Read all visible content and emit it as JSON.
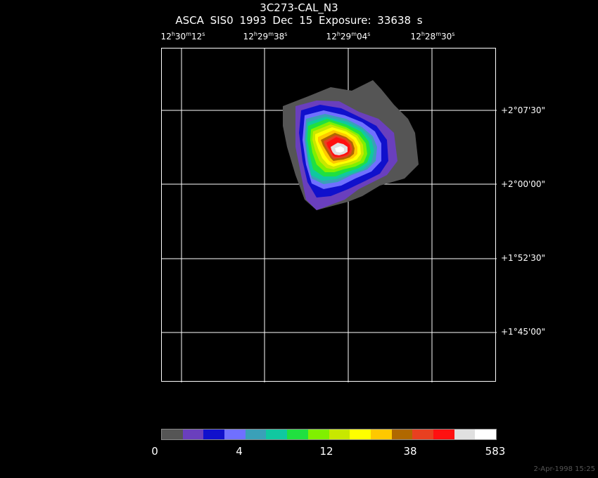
{
  "header": {
    "title": "3C273-CAL_N3",
    "subtitle": "ASCA SIS0   1993 Dec 15    Exposure: 33638 s"
  },
  "ra_ticks": [
    {
      "h": "12",
      "m": "30",
      "s": "12"
    },
    {
      "h": "12",
      "m": "29",
      "s": "38"
    },
    {
      "h": "12",
      "m": "29",
      "s": "04"
    },
    {
      "h": "12",
      "m": "28",
      "s": "30"
    }
  ],
  "dec_ticks": [
    "+2°07'30\"",
    "+2°00'00\"",
    "+1°52'30\"",
    "+1°45'00\""
  ],
  "colorbar": {
    "colors": [
      "#555555",
      "#6a3fbd",
      "#1010cc",
      "#7070ff",
      "#3aa0b8",
      "#10c8a0",
      "#20e040",
      "#80f000",
      "#c8e800",
      "#ffff00",
      "#ffc800",
      "#b06800",
      "#e84020",
      "#ff1010",
      "#e0e0e0",
      "#ffffff"
    ],
    "labels": [
      "0",
      "4",
      "12",
      "38",
      "583"
    ]
  },
  "footer": {
    "timestamp": "2-Apr-1998 15:25"
  }
}
